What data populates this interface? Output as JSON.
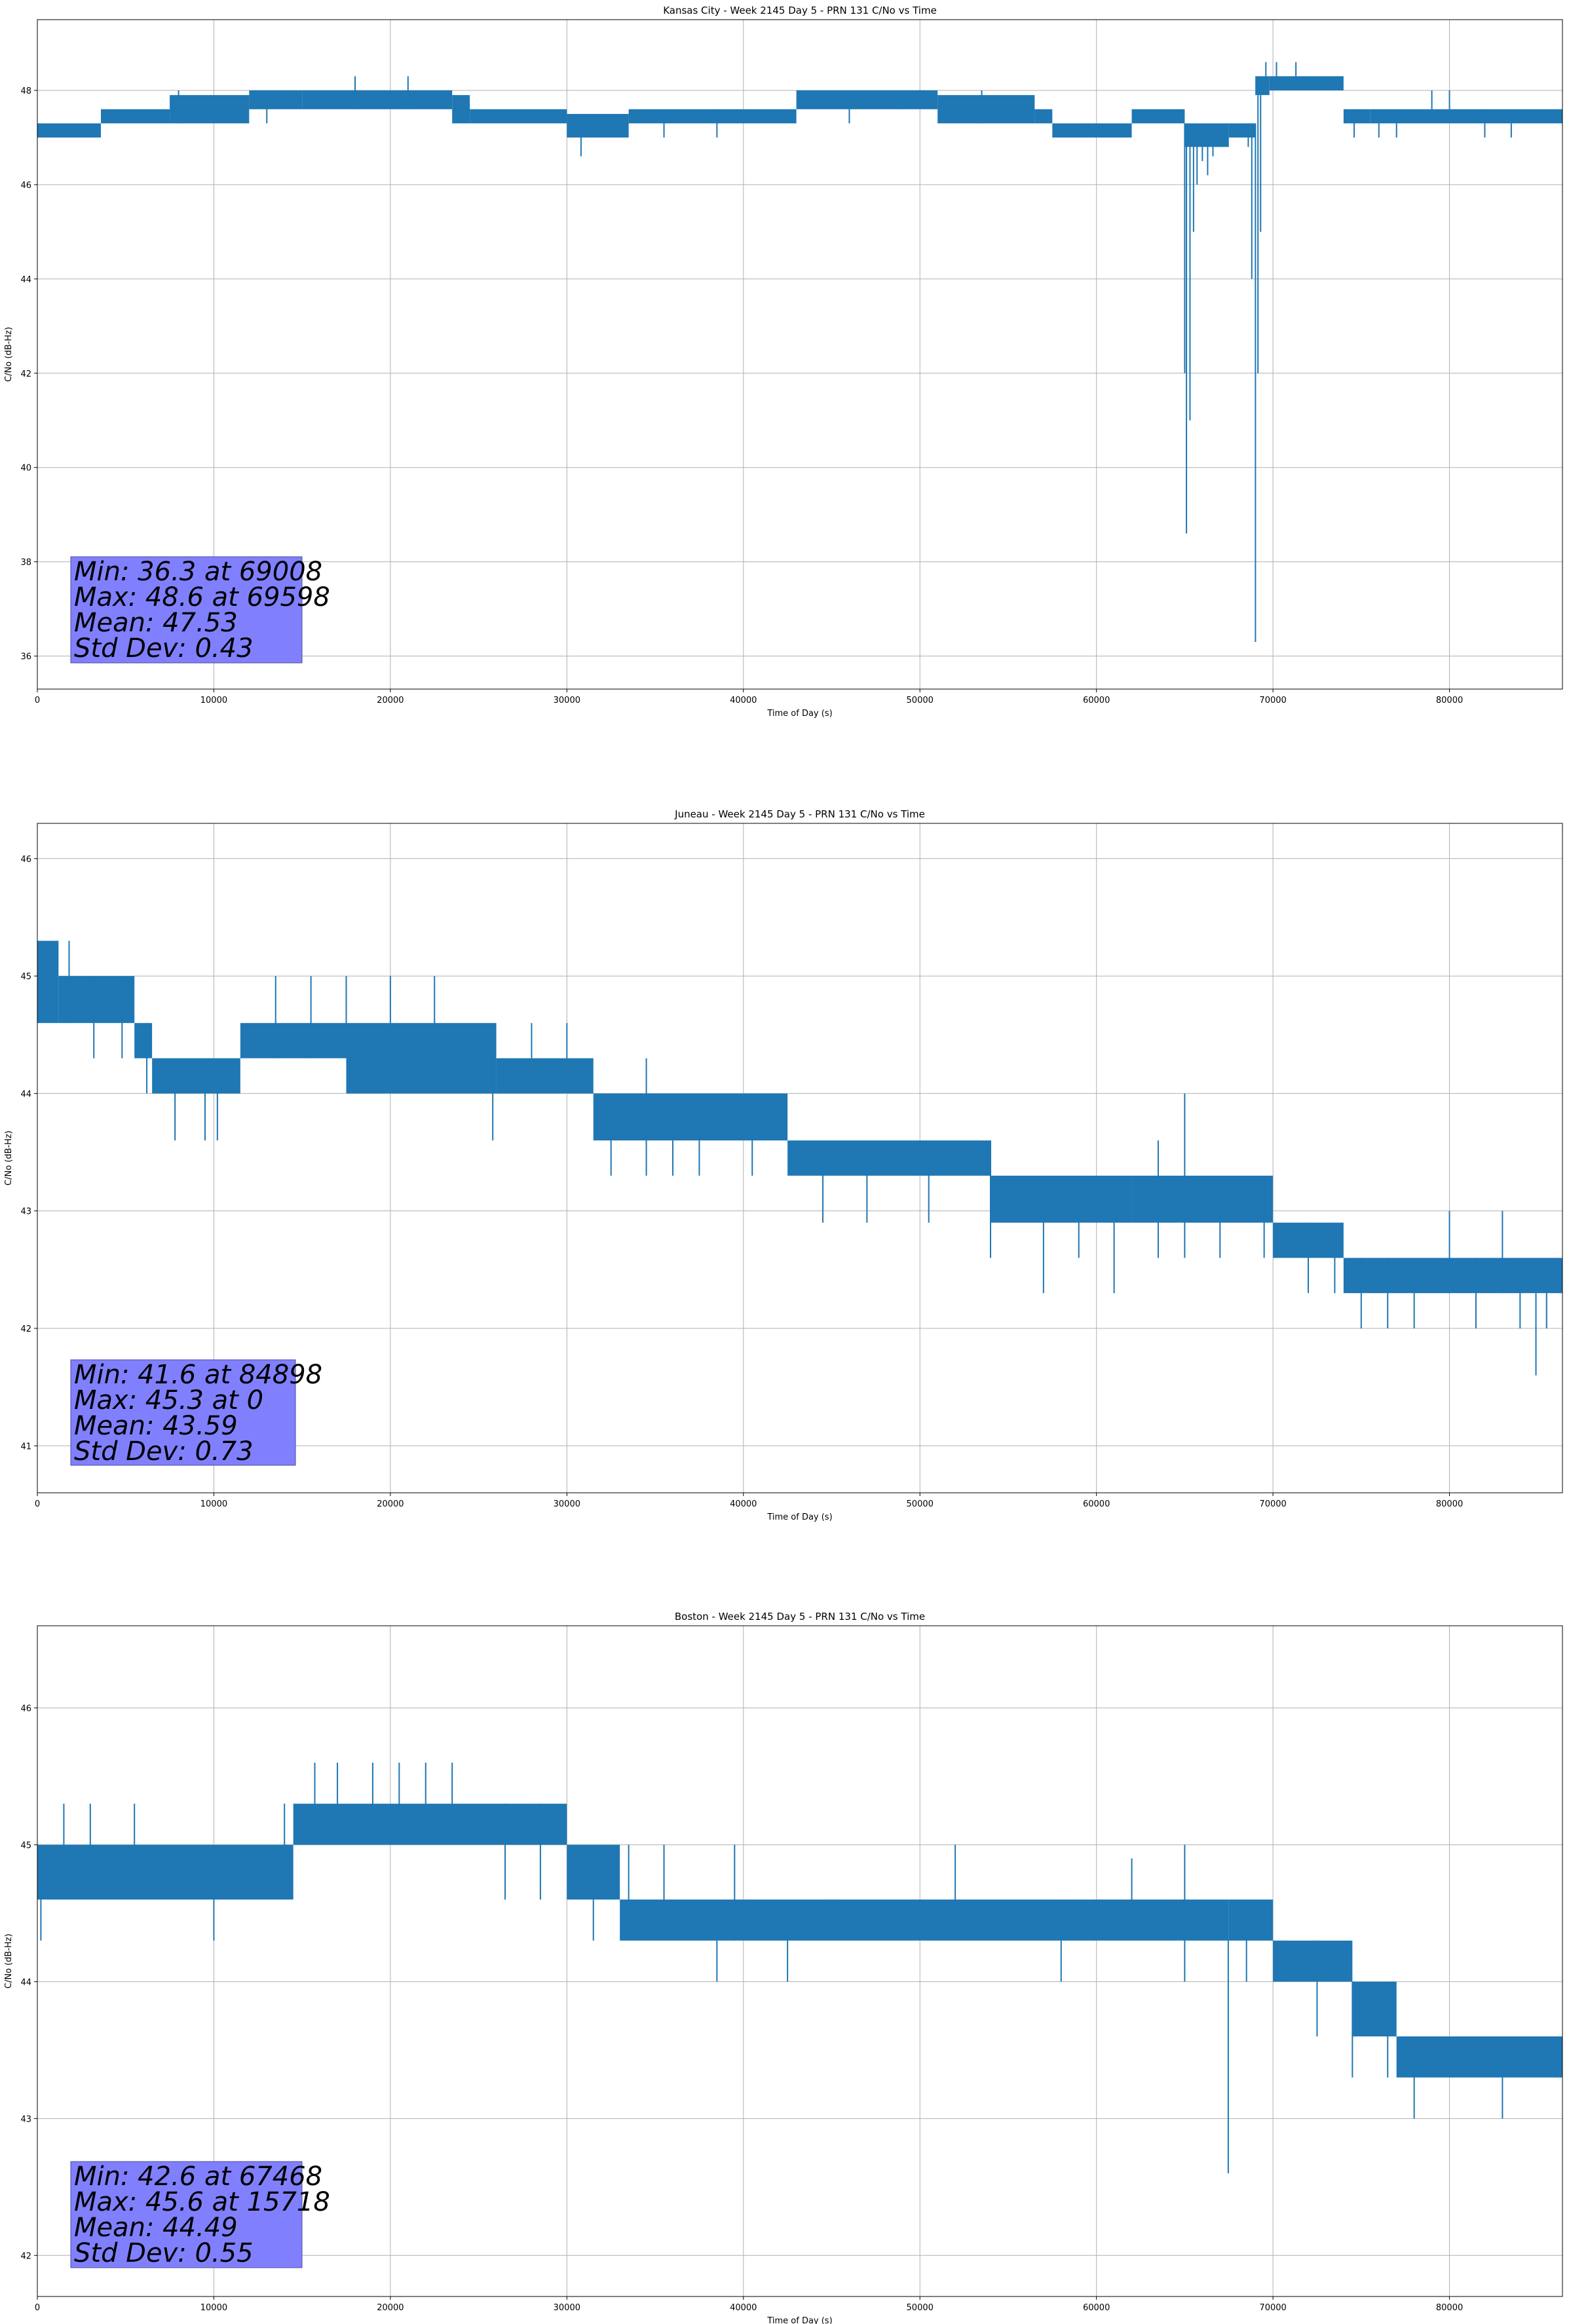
{
  "figure_size": [
    2395,
    3548
  ],
  "chart_data": [
    {
      "type": "line",
      "title": "Kansas City - Week 2145 Day 5 - PRN 131 C/No vs Time",
      "xlabel": "Time of Day (s)",
      "ylabel": "C/No (dB-Hz)",
      "xlim": [
        0,
        86400
      ],
      "ylim": [
        35.3,
        49.5
      ],
      "xticks": [
        0,
        10000,
        20000,
        30000,
        40000,
        50000,
        60000,
        70000,
        80000
      ],
      "yticks": [
        36,
        38,
        40,
        42,
        44,
        46,
        48
      ],
      "grid": true,
      "color": "#1f77b4",
      "stats": [
        "Min: 36.3 at 69008",
        "Max: 48.6 at 69598",
        "Mean: 47.53",
        "Std Dev: 0.43"
      ],
      "band_segments": [
        [
          0,
          3600,
          47.0,
          47.3
        ],
        [
          3600,
          7500,
          47.3,
          47.6
        ],
        [
          7500,
          12000,
          47.3,
          47.9
        ],
        [
          12000,
          15000,
          47.6,
          48.0
        ],
        [
          15000,
          23500,
          47.6,
          48.0
        ],
        [
          23500,
          24500,
          47.3,
          47.9
        ],
        [
          24500,
          30000,
          47.3,
          47.6
        ],
        [
          30000,
          33500,
          47.0,
          47.5
        ],
        [
          33500,
          43000,
          47.3,
          47.6
        ],
        [
          43000,
          51000,
          47.6,
          48.0
        ],
        [
          51000,
          56500,
          47.3,
          47.9
        ],
        [
          56500,
          57500,
          47.3,
          47.6
        ],
        [
          57500,
          62000,
          47.0,
          47.3
        ],
        [
          62000,
          65000,
          47.3,
          47.6
        ],
        [
          65000,
          67500,
          46.8,
          47.3
        ],
        [
          67500,
          69000,
          47.0,
          47.3
        ],
        [
          69000,
          69800,
          47.9,
          48.3
        ],
        [
          69800,
          74000,
          48.0,
          48.3
        ],
        [
          74000,
          75500,
          47.3,
          47.6
        ],
        [
          75500,
          86400,
          47.3,
          47.6
        ]
      ],
      "band_lines": [],
      "spikes": [
        [
          8000,
          47.3,
          48.0
        ],
        [
          13000,
          47.3,
          48.0
        ],
        [
          18000,
          47.6,
          48.3
        ],
        [
          21000,
          47.6,
          48.3
        ],
        [
          30800,
          46.6,
          47.3
        ],
        [
          35500,
          47.0,
          47.6
        ],
        [
          38500,
          47.0,
          47.6
        ],
        [
          46000,
          47.3,
          48.0
        ],
        [
          49000,
          47.6,
          48.0
        ],
        [
          53500,
          47.3,
          48.0
        ],
        [
          59500,
          47.0,
          47.3
        ],
        [
          65000,
          42.0,
          47.3
        ],
        [
          65100,
          38.6,
          47.3
        ],
        [
          65300,
          41.0,
          46.8
        ],
        [
          65500,
          45.0,
          47.0
        ],
        [
          65700,
          46.0,
          47.0
        ],
        [
          66000,
          46.5,
          47.0
        ],
        [
          66300,
          46.2,
          47.0
        ],
        [
          66600,
          46.6,
          47.0
        ],
        [
          67200,
          46.8,
          47.0
        ],
        [
          68600,
          46.8,
          47.3
        ],
        [
          68800,
          44.0,
          47.3
        ],
        [
          69008,
          36.3,
          47.3
        ],
        [
          69150,
          42.0,
          47.9
        ],
        [
          69300,
          45.0,
          47.9
        ],
        [
          69598,
          48.3,
          48.6
        ],
        [
          70200,
          48.3,
          48.6
        ],
        [
          71300,
          48.3,
          48.6
        ],
        [
          74600,
          47.0,
          47.6
        ],
        [
          76000,
          47.0,
          47.3
        ],
        [
          77000,
          47.0,
          47.3
        ],
        [
          79000,
          47.6,
          48.0
        ],
        [
          80000,
          47.6,
          48.0
        ],
        [
          82000,
          47.0,
          47.6
        ],
        [
          83500,
          47.0,
          47.3
        ]
      ]
    },
    {
      "type": "line",
      "title": "Juneau - Week 2145 Day 5 - PRN 131 C/No vs Time",
      "xlabel": "Time of Day (s)",
      "ylabel": "C/No (dB-Hz)",
      "xlim": [
        0,
        86400
      ],
      "ylim": [
        40.6,
        46.3
      ],
      "xticks": [
        0,
        10000,
        20000,
        30000,
        40000,
        50000,
        60000,
        70000,
        80000
      ],
      "yticks": [
        41,
        42,
        43,
        44,
        45,
        46
      ],
      "grid": true,
      "color": "#1f77b4",
      "stats": [
        "Min: 41.6 at 84898",
        "Max: 45.3 at 0",
        "Mean: 43.59",
        "Std Dev: 0.73"
      ],
      "band_segments": [
        [
          0,
          1200,
          44.6,
          45.3
        ],
        [
          1200,
          5500,
          44.6,
          45.0
        ],
        [
          5500,
          6500,
          44.3,
          44.6
        ],
        [
          6500,
          9000,
          44.0,
          44.3
        ],
        [
          9000,
          11500,
          44.0,
          44.3
        ],
        [
          11500,
          17500,
          44.3,
          44.6
        ],
        [
          17500,
          26000,
          44.0,
          44.6
        ],
        [
          26000,
          31500,
          44.0,
          44.3
        ],
        [
          31500,
          42500,
          43.6,
          44.0
        ],
        [
          42500,
          54000,
          43.3,
          43.6
        ],
        [
          54000,
          62000,
          42.9,
          43.3
        ],
        [
          62000,
          70000,
          42.9,
          43.3
        ],
        [
          70000,
          74000,
          42.6,
          42.9
        ],
        [
          74000,
          80000,
          42.3,
          42.6
        ],
        [
          80000,
          86400,
          42.3,
          42.6
        ]
      ],
      "band_lines": [],
      "spikes": [
        [
          1800,
          44.6,
          45.3
        ],
        [
          3200,
          44.3,
          45.0
        ],
        [
          4800,
          44.3,
          45.0
        ],
        [
          6200,
          44.0,
          44.6
        ],
        [
          7800,
          43.6,
          44.3
        ],
        [
          9500,
          43.6,
          44.3
        ],
        [
          10200,
          43.6,
          44.3
        ],
        [
          13500,
          44.3,
          45.0
        ],
        [
          15500,
          44.3,
          45.0
        ],
        [
          17500,
          44.3,
          45.0
        ],
        [
          20000,
          44.3,
          45.0
        ],
        [
          22500,
          44.3,
          45.0
        ],
        [
          25800,
          43.6,
          44.3
        ],
        [
          28000,
          44.3,
          44.6
        ],
        [
          30000,
          44.3,
          44.6
        ],
        [
          32500,
          43.3,
          44.0
        ],
        [
          34500,
          43.3,
          44.3
        ],
        [
          36000,
          43.3,
          43.6
        ],
        [
          37500,
          43.3,
          44.0
        ],
        [
          40500,
          43.3,
          44.0
        ],
        [
          44500,
          42.9,
          43.6
        ],
        [
          47000,
          42.9,
          43.6
        ],
        [
          50500,
          42.9,
          43.6
        ],
        [
          54000,
          42.6,
          43.6
        ],
        [
          57000,
          42.3,
          42.9
        ],
        [
          59000,
          42.6,
          43.3
        ],
        [
          61000,
          42.3,
          42.9
        ],
        [
          63500,
          42.6,
          43.6
        ],
        [
          65000,
          42.6,
          44.0
        ],
        [
          67000,
          42.6,
          43.3
        ],
        [
          69500,
          42.6,
          43.3
        ],
        [
          72000,
          42.3,
          42.9
        ],
        [
          73500,
          42.3,
          42.9
        ],
        [
          75000,
          42.0,
          42.6
        ],
        [
          76500,
          42.0,
          42.6
        ],
        [
          78000,
          42.0,
          42.6
        ],
        [
          80000,
          42.3,
          43.0
        ],
        [
          81500,
          42.0,
          42.6
        ],
        [
          83000,
          42.3,
          43.0
        ],
        [
          84000,
          42.0,
          42.6
        ],
        [
          84898,
          41.6,
          42.3
        ],
        [
          85500,
          42.0,
          42.6
        ]
      ]
    },
    {
      "type": "line",
      "title": "Boston - Week 2145 Day 5 - PRN 131 C/No vs Time",
      "xlabel": "Time of Day (s)",
      "ylabel": "C/No (dB-Hz)",
      "xlim": [
        0,
        86400
      ],
      "ylim": [
        41.7,
        46.6
      ],
      "xticks": [
        0,
        10000,
        20000,
        30000,
        40000,
        50000,
        60000,
        70000,
        80000
      ],
      "yticks": [
        42,
        43,
        44,
        45,
        46
      ],
      "grid": true,
      "color": "#1f77b4",
      "stats": [
        "Min: 42.6 at 67468",
        "Max: 45.6 at 15718",
        "Mean: 44.49",
        "Std Dev: 0.55"
      ],
      "band_segments": [
        [
          0,
          14500,
          44.6,
          45.0
        ],
        [
          14500,
          30000,
          45.0,
          45.3
        ],
        [
          30000,
          33000,
          44.6,
          45.0
        ],
        [
          33000,
          67500,
          44.3,
          44.6
        ],
        [
          67500,
          70000,
          44.3,
          44.6
        ],
        [
          70000,
          74500,
          44.0,
          44.3
        ],
        [
          74500,
          77000,
          43.6,
          44.0
        ],
        [
          77000,
          86400,
          43.3,
          43.6
        ]
      ],
      "band_lines": [],
      "spikes": [
        [
          200,
          44.3,
          45.0
        ],
        [
          1500,
          44.6,
          45.3
        ],
        [
          3000,
          44.6,
          45.3
        ],
        [
          5500,
          44.6,
          45.3
        ],
        [
          8500,
          44.6,
          45.0
        ],
        [
          10000,
          44.3,
          44.9
        ],
        [
          12500,
          44.6,
          45.0
        ],
        [
          14000,
          44.6,
          45.3
        ],
        [
          15718,
          45.0,
          45.6
        ],
        [
          17000,
          45.0,
          45.6
        ],
        [
          19000,
          45.0,
          45.6
        ],
        [
          20500,
          45.0,
          45.6
        ],
        [
          22000,
          45.0,
          45.6
        ],
        [
          23500,
          45.0,
          45.6
        ],
        [
          26500,
          44.6,
          45.3
        ],
        [
          28500,
          44.6,
          45.3
        ],
        [
          31500,
          44.3,
          45.0
        ],
        [
          33500,
          44.3,
          45.0
        ],
        [
          35500,
          44.3,
          45.0
        ],
        [
          38500,
          44.0,
          44.6
        ],
        [
          39500,
          44.3,
          45.0
        ],
        [
          42500,
          44.0,
          44.6
        ],
        [
          45000,
          44.3,
          44.6
        ],
        [
          52000,
          44.3,
          45.0
        ],
        [
          58000,
          44.0,
          44.6
        ],
        [
          62000,
          44.3,
          44.9
        ],
        [
          65000,
          44.0,
          45.0
        ],
        [
          67468,
          42.6,
          44.3
        ],
        [
          68500,
          44.0,
          44.6
        ],
        [
          70500,
          44.0,
          44.3
        ],
        [
          72500,
          43.6,
          44.3
        ],
        [
          74500,
          43.3,
          44.0
        ],
        [
          76500,
          43.3,
          44.0
        ],
        [
          78000,
          43.0,
          43.6
        ],
        [
          83000,
          43.0,
          43.6
        ],
        [
          86000,
          43.3,
          43.6
        ]
      ]
    }
  ]
}
